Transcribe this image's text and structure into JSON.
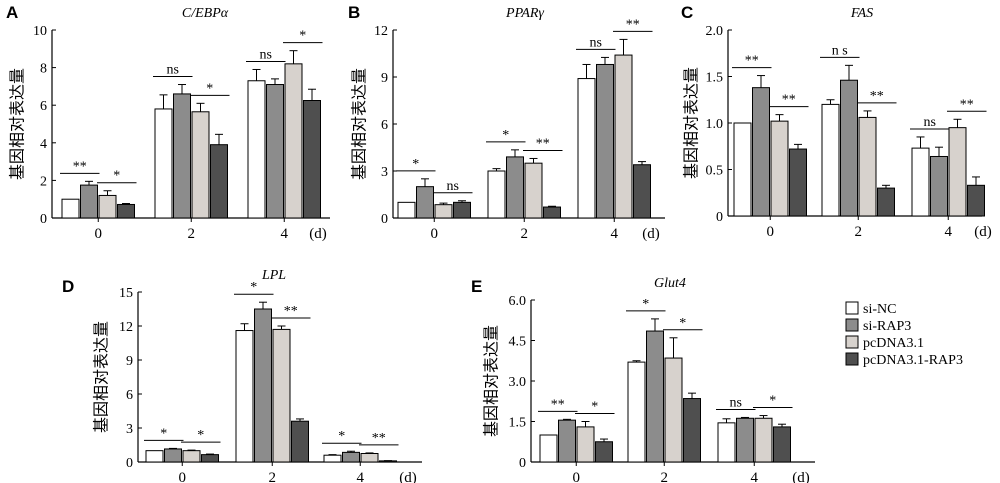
{
  "colors": {
    "si-NC": "#ffffff",
    "si-RAP3": "#8c8c8c",
    "pcDNA3.1": "#d7d2cd",
    "pcDNA3.1-RAP3": "#4f4f4f"
  },
  "legend": {
    "placement": "right",
    "entries": [
      "si-NC",
      "si-RAP3",
      "pcDNA3.1",
      "pcDNA3.1-RAP3"
    ]
  },
  "chart_data": [
    {
      "panel": "A",
      "type": "bar",
      "title": "C/EBPα",
      "ylabel": "基因相对表达量",
      "xlabel": "",
      "unit": "(d)",
      "categories": [
        "0",
        "2",
        "4"
      ],
      "ylim": [
        0,
        10
      ],
      "yticks": [
        "0",
        "2",
        "4",
        "6",
        "8",
        "10"
      ],
      "series": [
        {
          "name": "si-NC",
          "values": [
            1.0,
            5.8,
            7.3
          ],
          "errors": [
            0.0,
            0.75,
            0.6
          ]
        },
        {
          "name": "si-RAP3",
          "values": [
            1.75,
            6.6,
            7.1
          ],
          "errors": [
            0.2,
            0.5,
            0.3
          ]
        },
        {
          "name": "pcDNA3.1",
          "values": [
            1.2,
            5.65,
            8.2
          ],
          "errors": [
            0.25,
            0.45,
            0.7
          ]
        },
        {
          "name": "pcDNA3.1-RAP3",
          "values": [
            0.72,
            3.9,
            6.25
          ],
          "errors": [
            0.05,
            0.55,
            0.6
          ]
        }
      ],
      "annotations": [
        {
          "group": 0,
          "pair": [
            0,
            1
          ],
          "text": "**"
        },
        {
          "group": 0,
          "pair": [
            2,
            3
          ],
          "text": "*"
        },
        {
          "group": 1,
          "pair": [
            0,
            1
          ],
          "text": "ns"
        },
        {
          "group": 1,
          "pair": [
            2,
            3
          ],
          "text": "*"
        },
        {
          "group": 2,
          "pair": [
            0,
            1
          ],
          "text": "ns"
        },
        {
          "group": 2,
          "pair": [
            2,
            3
          ],
          "text": "*"
        }
      ]
    },
    {
      "panel": "B",
      "type": "bar",
      "title": "PPARγ",
      "ylabel": "基因相对表达量",
      "xlabel": "",
      "unit": "(d)",
      "categories": [
        "0",
        "2",
        "4"
      ],
      "ylim": [
        0,
        12
      ],
      "yticks": [
        "0",
        "3",
        "6",
        "9",
        "12"
      ],
      "series": [
        {
          "name": "si-NC",
          "values": [
            1.0,
            3.0,
            8.9
          ],
          "errors": [
            0.0,
            0.15,
            0.9
          ]
        },
        {
          "name": "si-RAP3",
          "values": [
            2.0,
            3.9,
            9.8
          ],
          "errors": [
            0.5,
            0.45,
            0.45
          ]
        },
        {
          "name": "pcDNA3.1",
          "values": [
            0.85,
            3.5,
            10.4
          ],
          "errors": [
            0.1,
            0.3,
            1.0
          ]
        },
        {
          "name": "pcDNA3.1-RAP3",
          "values": [
            1.0,
            0.7,
            3.4
          ],
          "errors": [
            0.1,
            0.05,
            0.2
          ]
        }
      ],
      "annotations": [
        {
          "group": 0,
          "pair": [
            0,
            1
          ],
          "text": "*"
        },
        {
          "group": 0,
          "pair": [
            2,
            3
          ],
          "text": "ns"
        },
        {
          "group": 1,
          "pair": [
            0,
            1
          ],
          "text": "*"
        },
        {
          "group": 1,
          "pair": [
            2,
            3
          ],
          "text": "**"
        },
        {
          "group": 2,
          "pair": [
            0,
            1
          ],
          "text": "ns"
        },
        {
          "group": 2,
          "pair": [
            2,
            3
          ],
          "text": "**"
        }
      ]
    },
    {
      "panel": "C",
      "type": "bar",
      "title": "FAS",
      "ylabel": "基因相对表达量",
      "xlabel": "",
      "unit": "(d)",
      "categories": [
        "0",
        "2",
        "4"
      ],
      "ylim": [
        0,
        2.0
      ],
      "yticks": [
        "0",
        "0.5",
        "1.0",
        "1.5",
        "2.0"
      ],
      "series": [
        {
          "name": "si-NC",
          "values": [
            1.0,
            1.2,
            0.73
          ],
          "errors": [
            0.0,
            0.05,
            0.12
          ]
        },
        {
          "name": "si-RAP3",
          "values": [
            1.38,
            1.46,
            0.64
          ],
          "errors": [
            0.13,
            0.16,
            0.1
          ]
        },
        {
          "name": "pcDNA3.1",
          "values": [
            1.02,
            1.06,
            0.95
          ],
          "errors": [
            0.07,
            0.07,
            0.09
          ]
        },
        {
          "name": "pcDNA3.1-RAP3",
          "values": [
            0.72,
            0.3,
            0.33
          ],
          "errors": [
            0.05,
            0.03,
            0.09
          ]
        }
      ],
      "annotations": [
        {
          "group": 0,
          "pair": [
            0,
            1
          ],
          "text": "**"
        },
        {
          "group": 0,
          "pair": [
            2,
            3
          ],
          "text": "**"
        },
        {
          "group": 1,
          "pair": [
            0,
            1
          ],
          "text": "n s"
        },
        {
          "group": 1,
          "pair": [
            2,
            3
          ],
          "text": "**"
        },
        {
          "group": 2,
          "pair": [
            0,
            1
          ],
          "text": "ns"
        },
        {
          "group": 2,
          "pair": [
            2,
            3
          ],
          "text": "**"
        }
      ]
    },
    {
      "panel": "D",
      "type": "bar",
      "title": "LPL",
      "ylabel": "基因相对表达量",
      "xlabel": "",
      "unit": "(d)",
      "categories": [
        "0",
        "2",
        "4"
      ],
      "ylim": [
        0,
        15
      ],
      "yticks": [
        "0",
        "3",
        "6",
        "9",
        "12",
        "15"
      ],
      "series": [
        {
          "name": "si-NC",
          "values": [
            1.0,
            11.6,
            0.6
          ],
          "errors": [
            0.0,
            0.6,
            0.05
          ]
        },
        {
          "name": "si-RAP3",
          "values": [
            1.15,
            13.5,
            0.85
          ],
          "errors": [
            0.05,
            0.6,
            0.1
          ]
        },
        {
          "name": "pcDNA3.1",
          "values": [
            1.0,
            11.7,
            0.75
          ],
          "errors": [
            0.05,
            0.3,
            0.05
          ]
        },
        {
          "name": "pcDNA3.1-RAP3",
          "values": [
            0.65,
            3.6,
            0.1
          ],
          "errors": [
            0.05,
            0.2,
            0.02
          ]
        }
      ],
      "annotations": [
        {
          "group": 0,
          "pair": [
            0,
            1
          ],
          "text": "*"
        },
        {
          "group": 0,
          "pair": [
            2,
            3
          ],
          "text": "*"
        },
        {
          "group": 1,
          "pair": [
            0,
            1
          ],
          "text": "*"
        },
        {
          "group": 1,
          "pair": [
            2,
            3
          ],
          "text": "**"
        },
        {
          "group": 2,
          "pair": [
            0,
            1
          ],
          "text": "*"
        },
        {
          "group": 2,
          "pair": [
            2,
            3
          ],
          "text": "**"
        }
      ]
    },
    {
      "panel": "E",
      "type": "bar",
      "title": "Glut4",
      "ylabel": "基因相对表达量",
      "xlabel": "",
      "unit": "(d)",
      "categories": [
        "0",
        "2",
        "4"
      ],
      "ylim": [
        0,
        6.0
      ],
      "yticks": [
        "0",
        "1.5",
        "3.0",
        "4.5",
        "6.0"
      ],
      "series": [
        {
          "name": "si-NC",
          "values": [
            1.0,
            3.7,
            1.45
          ],
          "errors": [
            0.0,
            0.05,
            0.15
          ]
        },
        {
          "name": "si-RAP3",
          "values": [
            1.55,
            4.85,
            1.62
          ],
          "errors": [
            0.03,
            0.45,
            0.03
          ]
        },
        {
          "name": "pcDNA3.1",
          "values": [
            1.3,
            3.85,
            1.62
          ],
          "errors": [
            0.2,
            0.75,
            0.1
          ]
        },
        {
          "name": "pcDNA3.1-RAP3",
          "values": [
            0.75,
            2.35,
            1.3
          ],
          "errors": [
            0.1,
            0.2,
            0.1
          ]
        }
      ],
      "annotations": [
        {
          "group": 0,
          "pair": [
            0,
            1
          ],
          "text": "**"
        },
        {
          "group": 0,
          "pair": [
            2,
            3
          ],
          "text": "*"
        },
        {
          "group": 1,
          "pair": [
            0,
            1
          ],
          "text": "*"
        },
        {
          "group": 1,
          "pair": [
            2,
            3
          ],
          "text": "*"
        },
        {
          "group": 2,
          "pair": [
            0,
            1
          ],
          "text": "ns"
        },
        {
          "group": 2,
          "pair": [
            2,
            3
          ],
          "text": "*"
        }
      ]
    }
  ]
}
